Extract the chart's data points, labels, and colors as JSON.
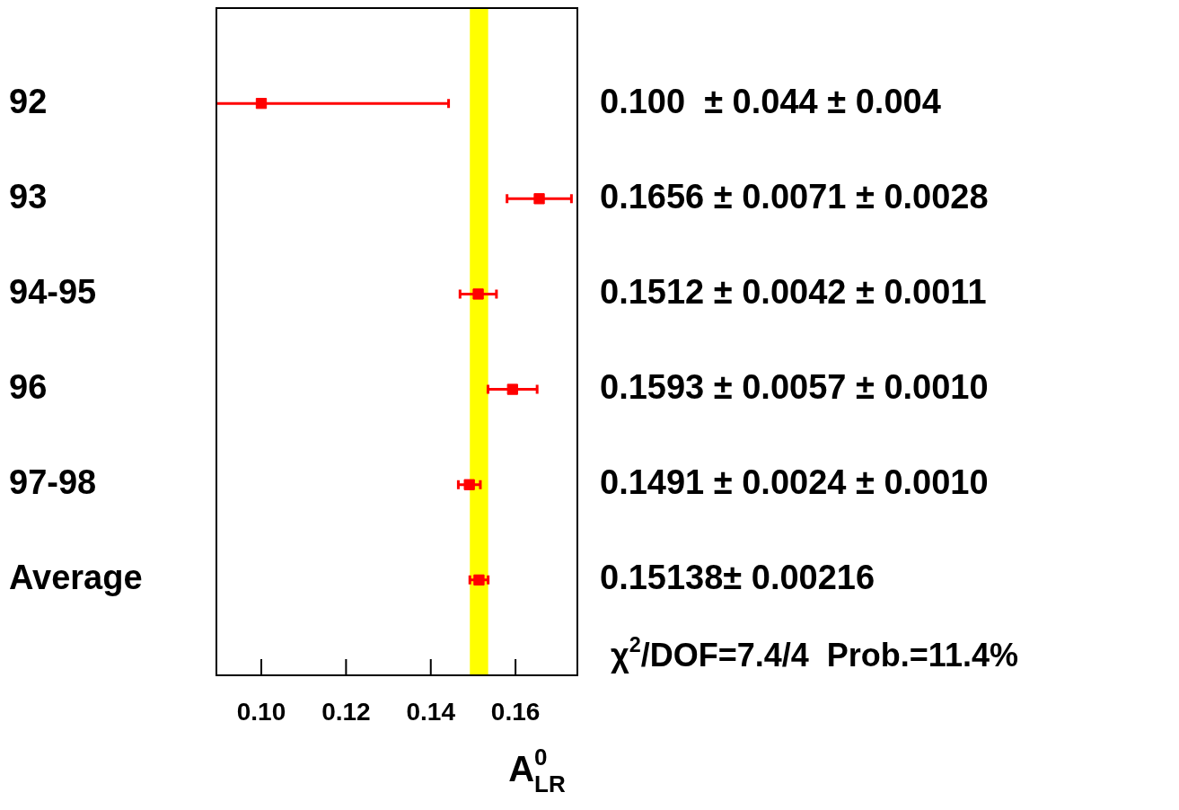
{
  "chart_data": {
    "type": "scatter",
    "orientation": "horizontal",
    "xlabel": "A$^{0}$$_{LR}$",
    "categories": [
      "92",
      "93",
      "94-95",
      "96",
      "97-98",
      "Average"
    ],
    "values": [
      0.1,
      0.1656,
      0.1512,
      0.1593,
      0.1491,
      0.15138
    ],
    "errors": [
      0.0442,
      0.0076,
      0.0043,
      0.0058,
      0.0026,
      0.00216
    ],
    "color": "#ff0000",
    "marker": "square",
    "xlim": [
      0.0894,
      0.1746
    ],
    "xticks": [
      {
        "value": 0.1,
        "label": "0.10"
      },
      {
        "value": 0.12,
        "label": "0.12"
      },
      {
        "value": 0.14,
        "label": "0.14"
      },
      {
        "value": 0.16,
        "label": "0.16"
      }
    ],
    "bands": [
      {
        "axis": "x",
        "from": 0.14922,
        "to": 0.15354,
        "color": "#ffff00"
      }
    ],
    "annotations": [
      "0.100  ± 0.044 ± 0.004",
      "0.1656 ± 0.0071 ± 0.0028",
      "0.1512 ± 0.0042 ± 0.0011",
      "0.1593 ± 0.0057 ± 0.0010",
      "0.1491 ± 0.0024 ± 0.0010",
      "0.15138± 0.00216",
      "χ$^{2}$/DOF=7.4/4  Prob.=11.4%"
    ],
    "grid": false,
    "legend": false
  }
}
